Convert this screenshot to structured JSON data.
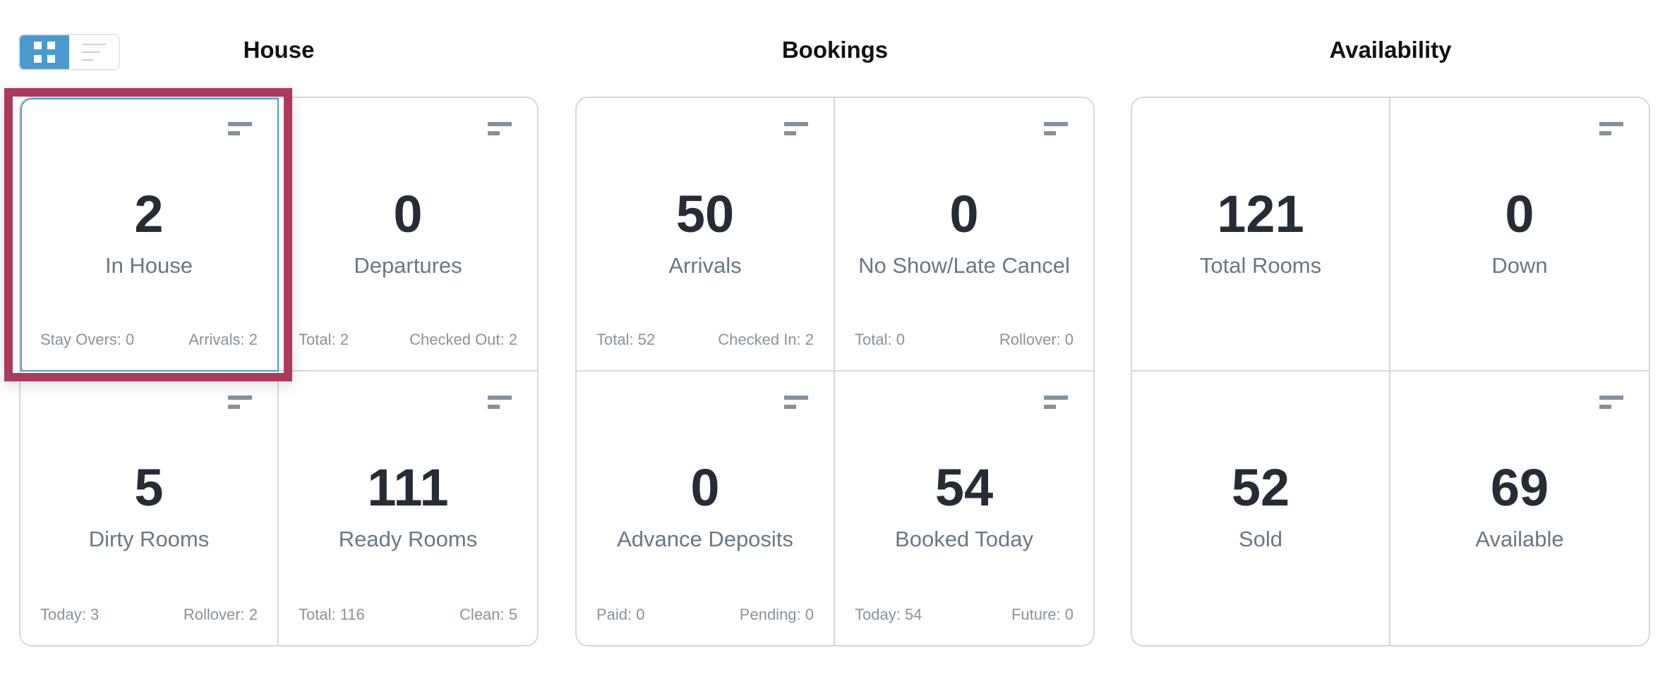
{
  "view_toggle": {
    "active": "grid",
    "options": [
      "grid-icon",
      "list-icon"
    ]
  },
  "colors": {
    "accent": "#4a9acf",
    "highlight": "#ad3a5c",
    "number": "#262c36",
    "label": "#687884",
    "footer": "#87939c"
  },
  "sections": [
    {
      "title": "House",
      "cells": [
        {
          "value": "2",
          "label": "In House",
          "footer": [
            "Stay Overs: 0",
            "Arrivals: 2"
          ],
          "icon": "sort-icon",
          "selected": true
        },
        {
          "value": "0",
          "label": "Departures",
          "footer": [
            "Total: 2",
            "Checked Out: 2"
          ],
          "icon": "sort-icon"
        },
        {
          "value": "5",
          "label": "Dirty Rooms",
          "footer": [
            "Today: 3",
            "Rollover: 2"
          ],
          "icon": "sort-icon"
        },
        {
          "value": "111",
          "label": "Ready Rooms",
          "footer": [
            "Total: 116",
            "Clean: 5"
          ],
          "icon": "sort-icon"
        }
      ]
    },
    {
      "title": "Bookings",
      "cells": [
        {
          "value": "50",
          "label": "Arrivals",
          "footer": [
            "Total: 52",
            "Checked In: 2"
          ],
          "icon": "sort-icon"
        },
        {
          "value": "0",
          "label": "No Show/Late Cancel",
          "footer": [
            "Total: 0",
            "Rollover: 0"
          ],
          "icon": "sort-icon"
        },
        {
          "value": "0",
          "label": "Advance Deposits",
          "footer": [
            "Paid: 0",
            "Pending: 0"
          ],
          "icon": "sort-icon"
        },
        {
          "value": "54",
          "label": "Booked Today",
          "footer": [
            "Today: 54",
            "Future: 0"
          ],
          "icon": "sort-icon"
        }
      ]
    },
    {
      "title": "Availability",
      "cells": [
        {
          "value": "121",
          "label": "Total Rooms"
        },
        {
          "value": "0",
          "label": "Down",
          "icon": "sort-icon"
        },
        {
          "value": "52",
          "label": "Sold"
        },
        {
          "value": "69",
          "label": "Available",
          "icon": "sort-icon"
        }
      ]
    }
  ]
}
